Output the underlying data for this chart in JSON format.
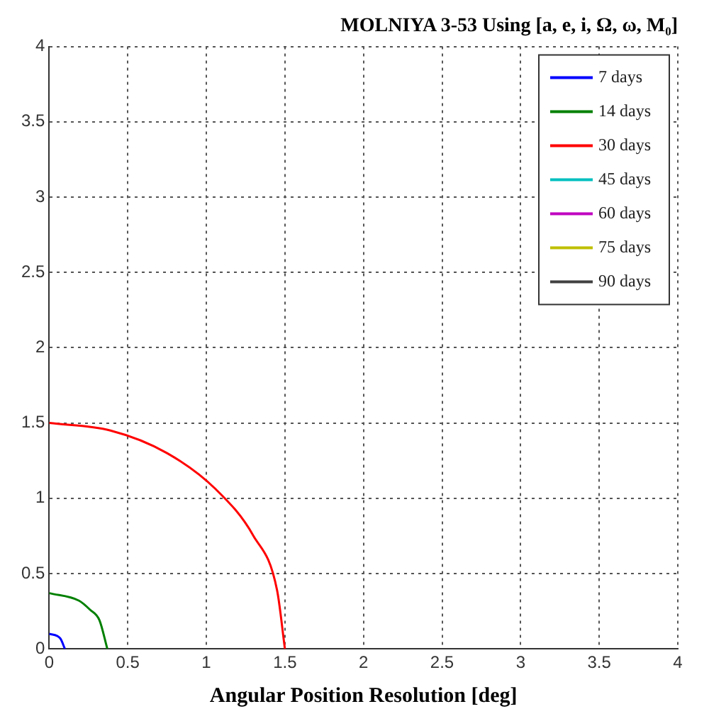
{
  "chart_data": {
    "type": "line",
    "title": "MOLNIYA 3-53 Using [a, e, i, Ω, ω, M₀]",
    "xlabel": "Angular Position Resolution [deg]",
    "xlim": [
      0,
      4
    ],
    "ylim": [
      0,
      4
    ],
    "xticks": [
      0,
      0.5,
      1,
      1.5,
      2,
      2.5,
      3,
      3.5,
      4
    ],
    "yticks": [
      0,
      0.5,
      1,
      1.5,
      2,
      2.5,
      3,
      3.5,
      4
    ],
    "grid": true,
    "legend": "top right",
    "marker": "none",
    "line_style": "solid",
    "series": [
      {
        "name": "7 days",
        "color": "#0000ff",
        "x": [
          0.1,
          0.07,
          0
        ],
        "values": [
          0,
          0.07,
          0.1
        ]
      },
      {
        "name": "14 days",
        "color": "#008000",
        "x": [
          0.37,
          0.32,
          0.26,
          0.19,
          0
        ],
        "values": [
          0,
          0.19,
          0.26,
          0.32,
          0.37
        ]
      },
      {
        "name": "30 days",
        "color": "#ff0000",
        "x": [
          1.5,
          1.45,
          1.3,
          1.06,
          0.75,
          0.39,
          0
        ],
        "values": [
          0,
          0.39,
          0.75,
          1.06,
          1.3,
          1.45,
          1.5
        ]
      },
      {
        "name": "45 days",
        "color": "#00bfbf"
      },
      {
        "name": "60 days",
        "color": "#bf00bf"
      },
      {
        "name": "75 days",
        "color": "#bfbf00"
      },
      {
        "name": "90 days",
        "color": "#404040"
      }
    ]
  }
}
